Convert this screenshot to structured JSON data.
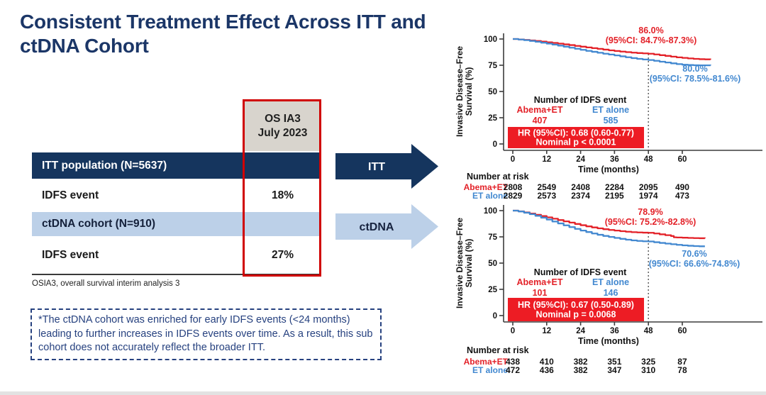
{
  "slide": {
    "title": "Consistent Treatment Effect Across ITT and\nctDNA Cohort",
    "footnote": "OSIA3, overall survival interim analysis 3",
    "note": "*The ctDNA cohort was enriched for early IDFS events (<24 months) leading to further increases in IDFS events over time. As a result, this sub cohort does not accurately reflect the broader ITT."
  },
  "table": {
    "col_header": "OS IA3\nJuly 2023",
    "rows": [
      {
        "label": "ITT population (N=5637)",
        "value": ""
      },
      {
        "label": "IDFS event",
        "value": "18%"
      },
      {
        "label": "ctDNA cohort (N=910)",
        "value": ""
      },
      {
        "label": "IDFS event",
        "value": "27%"
      }
    ]
  },
  "arrows": [
    {
      "label": "ITT",
      "color": "#15355e",
      "label_color": "#ffffff"
    },
    {
      "label": "ctDNA",
      "color": "#bcd0e8",
      "label_color": "#17233f"
    }
  ],
  "colors": {
    "navy": "#15355e",
    "light_blue": "#bcd0e8",
    "abema_red": "#e32128",
    "et_blue": "#4288d0",
    "hr_box_red": "#ed1c24",
    "highlight_red": "#d00000"
  },
  "chart_data": [
    {
      "type": "line",
      "subtype": "kaplan-meier",
      "cohort": "ITT",
      "ylabel": "Invasive Disease–Free\nSurvival (%)",
      "xlabel": "Time (months)",
      "xticks": [
        0,
        12,
        24,
        36,
        48,
        60
      ],
      "yticks": [
        100,
        75,
        50,
        25,
        0
      ],
      "ylim": [
        0,
        100
      ],
      "dashed_line_x": 48,
      "events_header": "Number of IDFS event",
      "hr_box": [
        "HR (95%CI): 0.68 (0.60-0.77)",
        "Nominal p < 0.0001"
      ],
      "series": [
        {
          "name": "Abema+ET",
          "color": "#e32128",
          "events": "407",
          "annotation": [
            "86.0%",
            "(95%CI: 84.7%-87.3%)"
          ],
          "points": [
            [
              0,
              100
            ],
            [
              2,
              99.6
            ],
            [
              4,
              99.1
            ],
            [
              6,
              98.6
            ],
            [
              8,
              98.1
            ],
            [
              10,
              97.5
            ],
            [
              12,
              96.9
            ],
            [
              14,
              96.3
            ],
            [
              16,
              95.6
            ],
            [
              18,
              94.9
            ],
            [
              20,
              94.2
            ],
            [
              22,
              93.4
            ],
            [
              24,
              92.7
            ],
            [
              26,
              92
            ],
            [
              28,
              91.3
            ],
            [
              30,
              90.6
            ],
            [
              32,
              89.9
            ],
            [
              34,
              89.2
            ],
            [
              36,
              88.6
            ],
            [
              38,
              88
            ],
            [
              40,
              87.5
            ],
            [
              42,
              87
            ],
            [
              44,
              86.6
            ],
            [
              46,
              86.3
            ],
            [
              48,
              86
            ],
            [
              50,
              85.3
            ],
            [
              52,
              84.6
            ],
            [
              54,
              83.9
            ],
            [
              56,
              83.2
            ],
            [
              58,
              82.5
            ],
            [
              60,
              82
            ],
            [
              62,
              81.5
            ],
            [
              64,
              81.1
            ],
            [
              66,
              80.8
            ],
            [
              68,
              80.6
            ],
            [
              70,
              80.5
            ]
          ]
        },
        {
          "name": "ET alone",
          "color": "#4288d0",
          "events": "585",
          "annotation": [
            "80.0%",
            "(95%CI: 78.5%-81.6%)"
          ],
          "points": [
            [
              0,
              100
            ],
            [
              2,
              99.5
            ],
            [
              4,
              98.9
            ],
            [
              6,
              98.2
            ],
            [
              8,
              97.4
            ],
            [
              10,
              96.5
            ],
            [
              12,
              95.6
            ],
            [
              14,
              94.7
            ],
            [
              16,
              93.7
            ],
            [
              18,
              92.7
            ],
            [
              20,
              91.7
            ],
            [
              22,
              90.7
            ],
            [
              24,
              89.7
            ],
            [
              26,
              88.7
            ],
            [
              28,
              87.8
            ],
            [
              30,
              86.9
            ],
            [
              32,
              86
            ],
            [
              34,
              85.2
            ],
            [
              36,
              84.4
            ],
            [
              38,
              83.5
            ],
            [
              40,
              82.6
            ],
            [
              42,
              81.8
            ],
            [
              44,
              81.1
            ],
            [
              46,
              80.5
            ],
            [
              48,
              80
            ],
            [
              50,
              79.2
            ],
            [
              52,
              78.4
            ],
            [
              54,
              77.6
            ],
            [
              56,
              76.8
            ],
            [
              58,
              76.1
            ],
            [
              60,
              75.5
            ],
            [
              62,
              75.2
            ],
            [
              64,
              75
            ],
            [
              66,
              74.9
            ],
            [
              68,
              74.9
            ],
            [
              70,
              74.8
            ]
          ]
        }
      ],
      "risk_table": {
        "title": "Number at risk",
        "timepoints": [
          0,
          12,
          24,
          36,
          48,
          60
        ],
        "rows": [
          {
            "name": "Abema+ET",
            "color": "#e32128",
            "values": [
              "2808",
              "2549",
              "2408",
              "2284",
              "2095",
              "490"
            ]
          },
          {
            "name": "ET alone",
            "color": "#4288d0",
            "values": [
              "2829",
              "2573",
              "2374",
              "2195",
              "1974",
              "473"
            ]
          }
        ]
      }
    },
    {
      "type": "line",
      "subtype": "kaplan-meier",
      "cohort": "ctDNA",
      "ylabel": "Invasive Disease–Free\nSurvival (%)",
      "xlabel": "Time (months)",
      "xticks": [
        0,
        12,
        24,
        36,
        48,
        60
      ],
      "yticks": [
        100,
        75,
        50,
        25,
        0
      ],
      "ylim": [
        0,
        100
      ],
      "dashed_line_x": 48,
      "events_header": "Number of IDFS event",
      "hr_box": [
        "HR (95%CI): 0.67 (0.50-0.89)",
        "Nominal p = 0.0068"
      ],
      "series": [
        {
          "name": "Abema+ET",
          "color": "#e32128",
          "events": "101",
          "annotation": [
            "78.9%",
            "(95%CI: 75.2%-82.8%)"
          ],
          "points": [
            [
              0,
              100
            ],
            [
              2,
              99.3
            ],
            [
              4,
              98.3
            ],
            [
              6,
              97.2
            ],
            [
              8,
              96
            ],
            [
              10,
              94.8
            ],
            [
              12,
              93.6
            ],
            [
              14,
              92.3
            ],
            [
              16,
              91
            ],
            [
              18,
              89.8
            ],
            [
              20,
              88.6
            ],
            [
              22,
              87.3
            ],
            [
              24,
              86.1
            ],
            [
              26,
              85
            ],
            [
              28,
              84
            ],
            [
              30,
              83.1
            ],
            [
              32,
              82.3
            ],
            [
              34,
              81.6
            ],
            [
              36,
              81
            ],
            [
              38,
              80.4
            ],
            [
              40,
              79.9
            ],
            [
              42,
              79.5
            ],
            [
              44,
              79.2
            ],
            [
              46,
              79
            ],
            [
              48,
              78.9
            ],
            [
              50,
              78.2
            ],
            [
              52,
              77.4
            ],
            [
              54,
              76.6
            ],
            [
              56,
              75.8
            ],
            [
              57,
              74.6
            ],
            [
              58,
              74.4
            ],
            [
              60,
              74.2
            ],
            [
              62,
              74
            ],
            [
              64,
              73.8
            ],
            [
              66,
              73.7
            ],
            [
              68,
              73.6
            ]
          ]
        },
        {
          "name": "ET alone",
          "color": "#4288d0",
          "events": "146",
          "annotation": [
            "70.6%",
            "(95%CI: 66.6%-74.8%)"
          ],
          "points": [
            [
              0,
              100
            ],
            [
              2,
              99.2
            ],
            [
              4,
              98
            ],
            [
              6,
              96.6
            ],
            [
              8,
              95
            ],
            [
              10,
              93.3
            ],
            [
              12,
              91.5
            ],
            [
              14,
              89.6
            ],
            [
              16,
              87.8
            ],
            [
              18,
              86
            ],
            [
              20,
              84.3
            ],
            [
              22,
              82.6
            ],
            [
              24,
              81
            ],
            [
              26,
              79.6
            ],
            [
              28,
              78.2
            ],
            [
              30,
              77
            ],
            [
              32,
              75.9
            ],
            [
              34,
              74.9
            ],
            [
              36,
              74
            ],
            [
              38,
              73.1
            ],
            [
              40,
              72.3
            ],
            [
              42,
              71.6
            ],
            [
              44,
              71.1
            ],
            [
              46,
              70.8
            ],
            [
              48,
              70.6
            ],
            [
              50,
              69.9
            ],
            [
              52,
              69.2
            ],
            [
              54,
              68.6
            ],
            [
              56,
              68
            ],
            [
              58,
              67.4
            ],
            [
              60,
              66.9
            ],
            [
              62,
              66.5
            ],
            [
              64,
              66.2
            ],
            [
              66,
              66
            ],
            [
              68,
              66
            ]
          ]
        }
      ],
      "risk_table": {
        "title": "Number at risk",
        "timepoints": [
          0,
          12,
          24,
          36,
          48,
          60
        ],
        "rows": [
          {
            "name": "Abema+ET",
            "color": "#e32128",
            "values": [
              "438",
              "410",
              "382",
              "351",
              "325",
              "87"
            ]
          },
          {
            "name": "ET alone",
            "color": "#4288d0",
            "values": [
              "472",
              "436",
              "382",
              "347",
              "310",
              "78"
            ]
          }
        ]
      }
    }
  ]
}
